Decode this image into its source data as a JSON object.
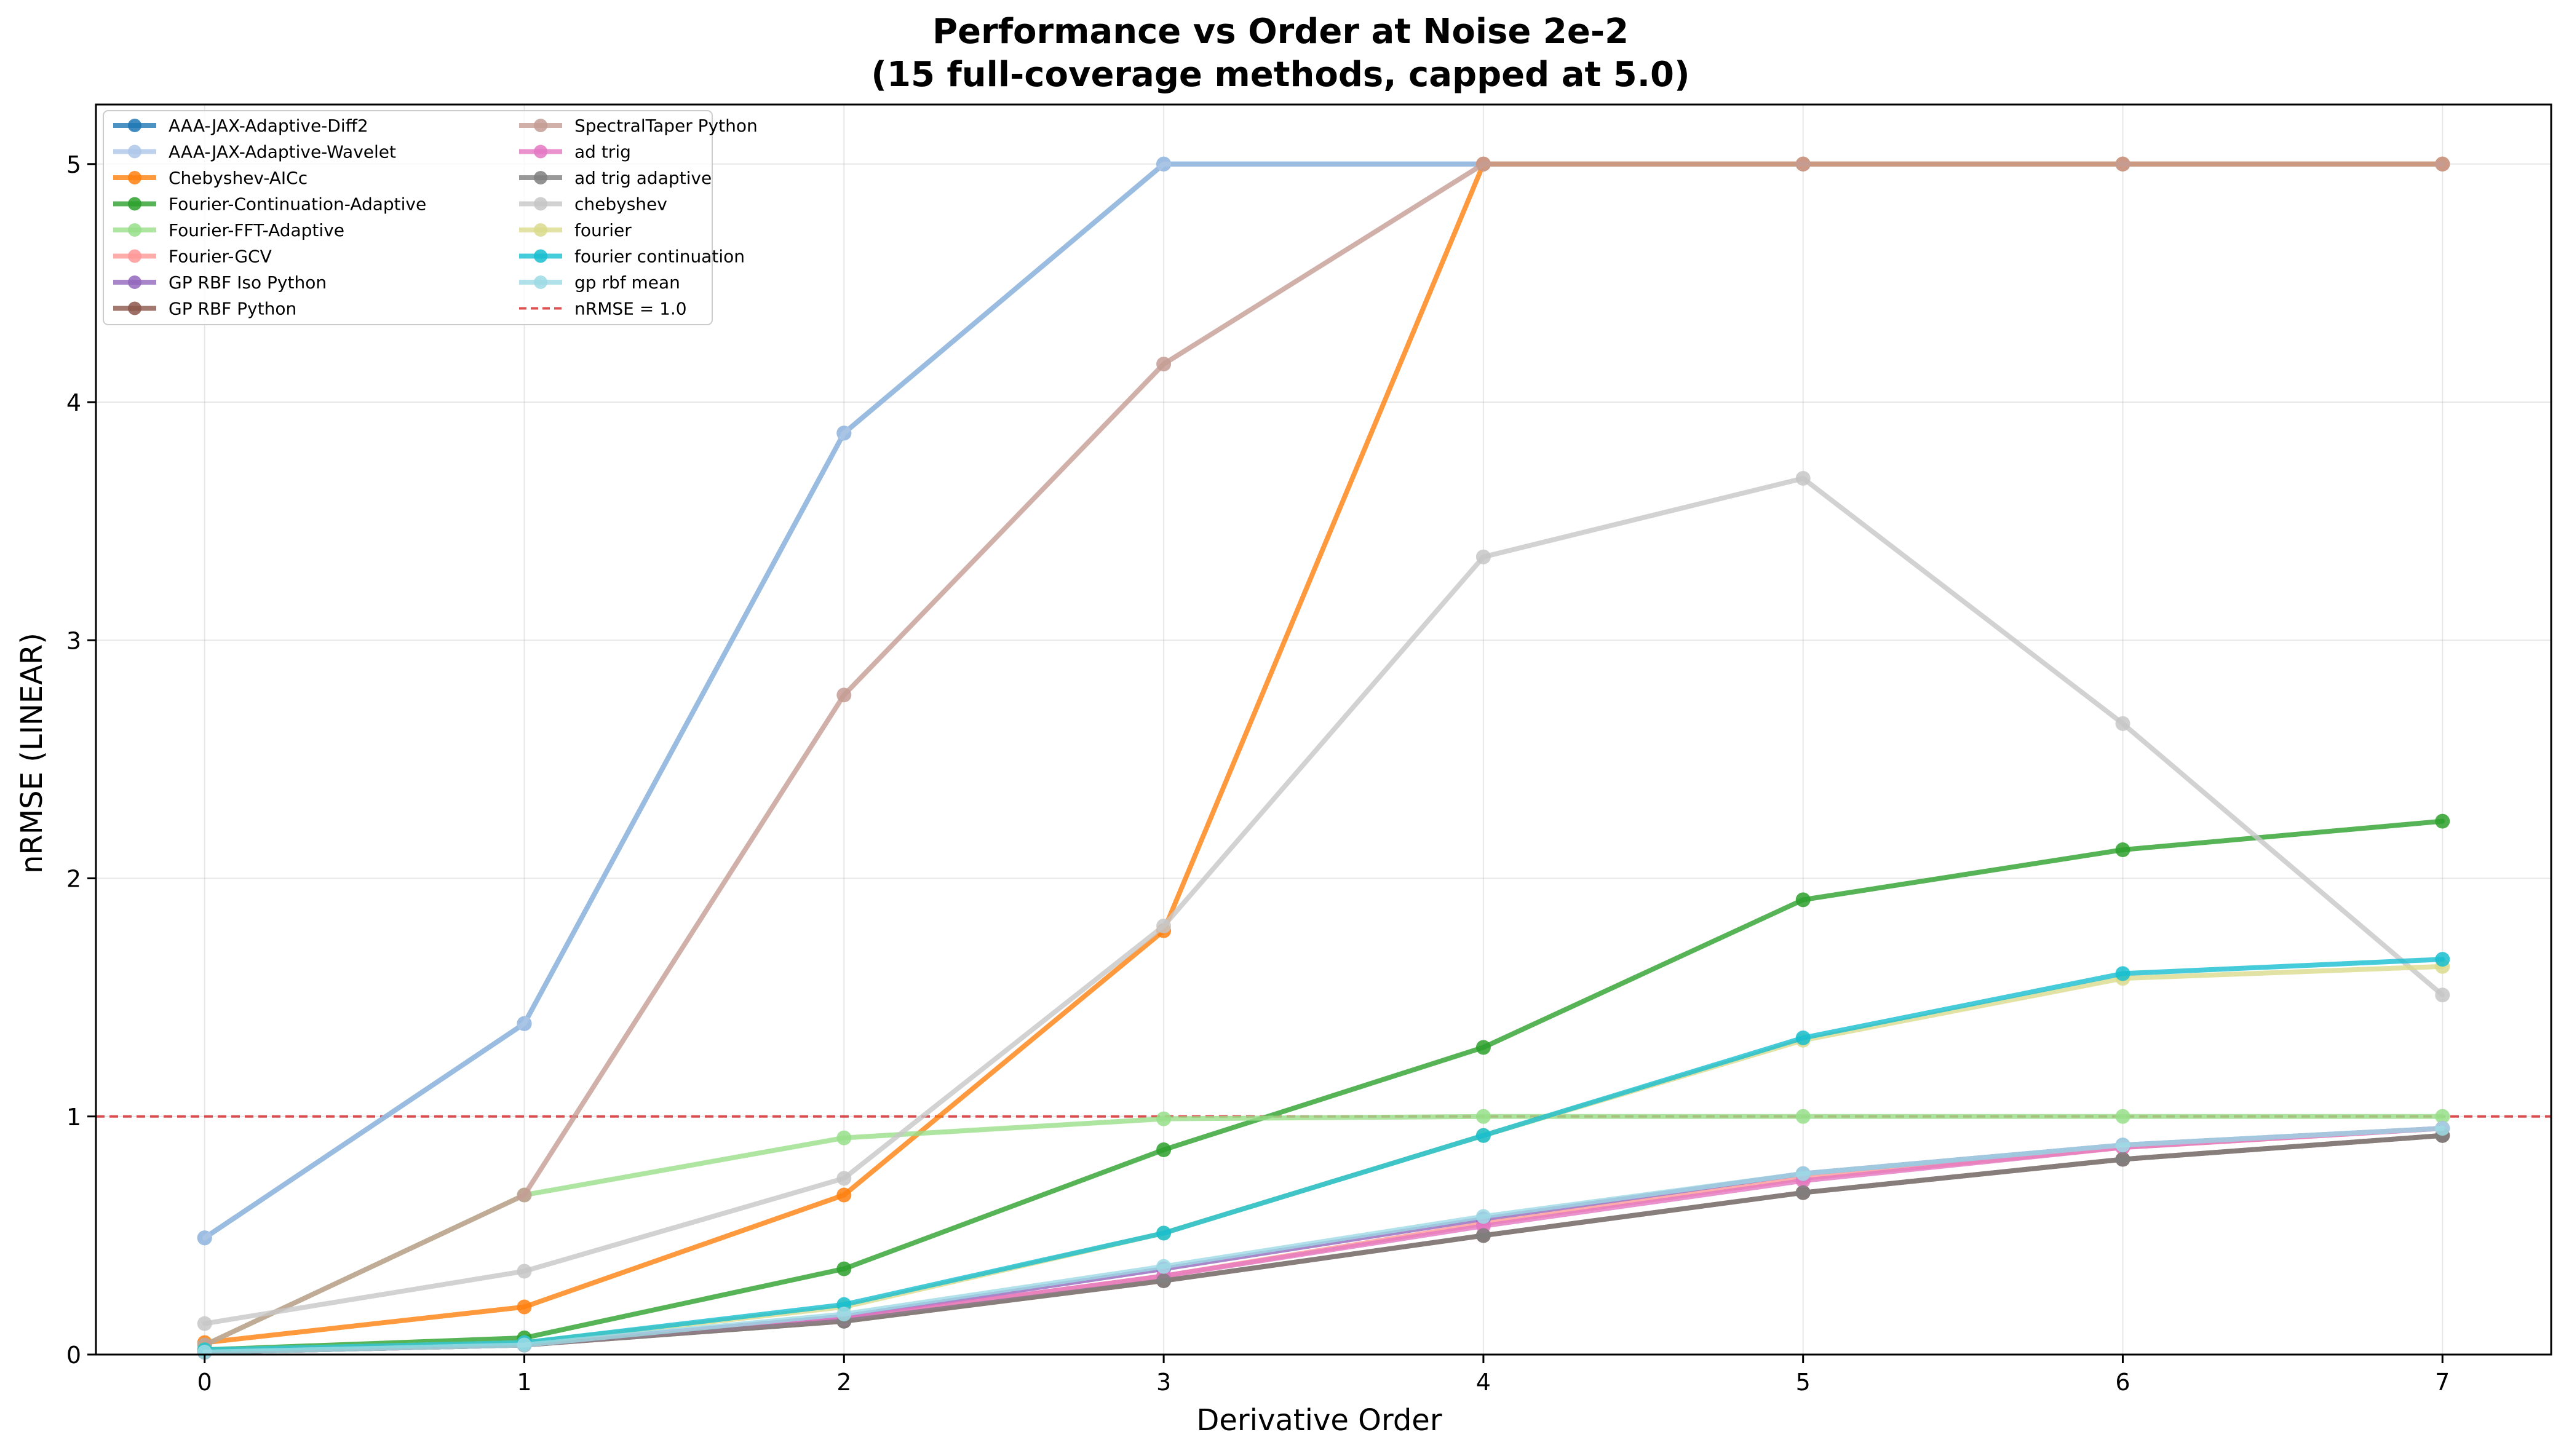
{
  "chart_data": {
    "type": "line",
    "title": "Performance vs Order at Noise 2e-2",
    "subtitle": "(15 full-coverage methods, capped at 5.0)",
    "xlabel": "Derivative Order",
    "ylabel": "nRMSE (LINEAR)",
    "x": [
      0,
      1,
      2,
      3,
      4,
      5,
      6,
      7
    ],
    "xlim": [
      -0.34,
      7.34
    ],
    "ylim": [
      0,
      5.25
    ],
    "xticks": [
      "0",
      "1",
      "2",
      "3",
      "4",
      "5",
      "6",
      "7"
    ],
    "yticks": [
      "0",
      "1",
      "2",
      "3",
      "4",
      "5"
    ],
    "grid": true,
    "legend_position": "top-left",
    "series": [
      {
        "name": "AAA-JAX-Adaptive-Diff2",
        "color": "#1f77b4",
        "values": [
          0.49,
          1.39,
          3.87,
          5.0,
          5.0,
          5.0,
          5.0,
          5.0
        ]
      },
      {
        "name": "AAA-JAX-Adaptive-Wavelet",
        "color": "#aec7e8",
        "values": [
          0.49,
          1.39,
          3.87,
          5.0,
          5.0,
          5.0,
          5.0,
          5.0
        ]
      },
      {
        "name": "Chebyshev-AICc",
        "color": "#ff7f0e",
        "values": [
          0.05,
          0.2,
          0.67,
          1.78,
          5.0,
          5.0,
          5.0,
          5.0
        ]
      },
      {
        "name": "Fourier-Continuation-Adaptive",
        "color": "#2ca02c",
        "values": [
          0.02,
          0.07,
          0.36,
          0.86,
          1.29,
          1.91,
          2.12,
          2.24
        ]
      },
      {
        "name": "Fourier-FFT-Adaptive",
        "color": "#98df8a",
        "values": [
          0.04,
          0.67,
          0.91,
          0.99,
          1.0,
          1.0,
          1.0,
          1.0
        ]
      },
      {
        "name": "Fourier-GCV",
        "color": "#ff9896",
        "values": [
          0.01,
          0.04,
          0.15,
          0.33,
          0.55,
          0.74,
          0.87,
          0.95
        ]
      },
      {
        "name": "GP RBF Iso Python",
        "color": "#9467bd",
        "values": [
          0.01,
          0.04,
          0.16,
          0.36,
          0.57,
          0.76,
          0.88,
          0.95
        ]
      },
      {
        "name": "GP RBF Python",
        "color": "#8c564b",
        "values": [
          0.01,
          0.04,
          0.14,
          0.31,
          0.5,
          0.68,
          0.82,
          0.92
        ]
      },
      {
        "name": "SpectralTaper Python",
        "color": "#c49c94",
        "values": [
          0.04,
          0.67,
          2.77,
          4.16,
          5.0,
          5.0,
          5.0,
          5.0
        ]
      },
      {
        "name": "ad trig",
        "color": "#e377c2",
        "values": [
          0.01,
          0.04,
          0.15,
          0.33,
          0.54,
          0.73,
          0.87,
          0.95
        ]
      },
      {
        "name": "ad trig adaptive",
        "color": "#7f7f7f",
        "values": [
          0.01,
          0.04,
          0.14,
          0.31,
          0.5,
          0.68,
          0.82,
          0.92
        ]
      },
      {
        "name": "chebyshev",
        "color": "#c7c7c7",
        "values": [
          0.13,
          0.35,
          0.74,
          1.8,
          3.35,
          3.68,
          2.65,
          1.51
        ]
      },
      {
        "name": "fourier",
        "color": "#dbdb8d",
        "values": [
          0.02,
          0.05,
          0.2,
          0.51,
          0.92,
          1.32,
          1.58,
          1.63
        ]
      },
      {
        "name": "fourier continuation",
        "color": "#17becf",
        "values": [
          0.02,
          0.05,
          0.21,
          0.51,
          0.92,
          1.33,
          1.6,
          1.66
        ]
      },
      {
        "name": "gp rbf mean",
        "color": "#9edae5",
        "values": [
          0.01,
          0.04,
          0.17,
          0.37,
          0.58,
          0.76,
          0.88,
          0.95
        ]
      }
    ],
    "reference_line": {
      "name": "nRMSE = 1.0",
      "y": 1.0,
      "color": "#d62728",
      "style": "dashed"
    }
  }
}
